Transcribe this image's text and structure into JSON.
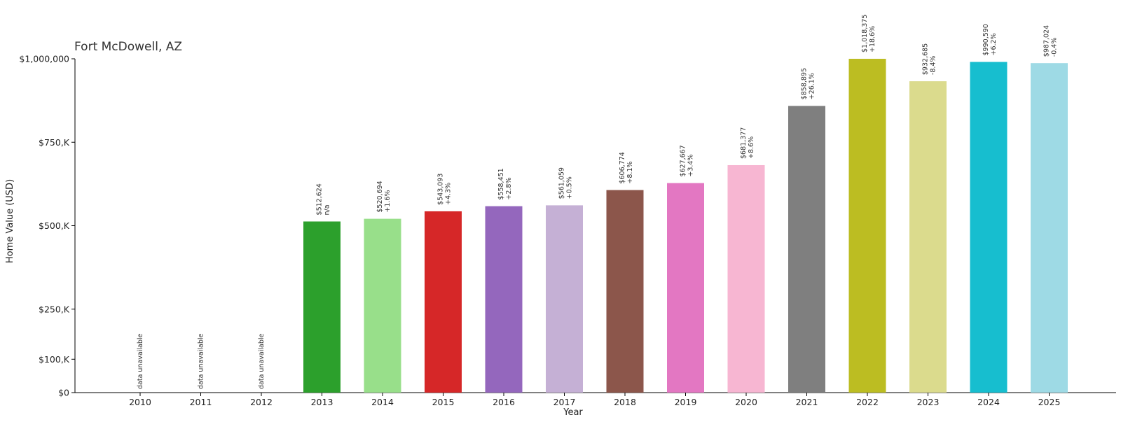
{
  "chart_data": {
    "type": "bar",
    "title": "Fort McDowell, AZ",
    "xlabel": "Year",
    "ylabel": "Home Value (USD)",
    "ylim": [
      0,
      1000000
    ],
    "yticks": [
      {
        "value": 0,
        "label": "$0"
      },
      {
        "value": 100000,
        "label": "$100,K"
      },
      {
        "value": 250000,
        "label": "$250,K"
      },
      {
        "value": 500000,
        "label": "$500,K"
      },
      {
        "value": 750000,
        "label": "$750,K"
      },
      {
        "value": 1000000,
        "label": "$1,000,000"
      }
    ],
    "grid": false,
    "unavailable_label": "data unavailable",
    "categories": [
      "2010",
      "2011",
      "2012",
      "2013",
      "2014",
      "2015",
      "2016",
      "2017",
      "2018",
      "2019",
      "2020",
      "2021",
      "2022",
      "2023",
      "2024",
      "2025"
    ],
    "values": [
      null,
      null,
      null,
      512624,
      520694,
      543093,
      558451,
      561059,
      606774,
      627667,
      681377,
      858895,
      1018375,
      932685,
      990590,
      987024
    ],
    "value_labels": [
      "",
      "",
      "",
      "$512,624",
      "$520,694",
      "$543,093",
      "$558,451",
      "$561,059",
      "$606,774",
      "$627,667",
      "$681,377",
      "$858,895",
      "$1,018,375",
      "$932,685",
      "$990,590",
      "$987,024"
    ],
    "change_labels": [
      "",
      "",
      "",
      "n/a",
      "+1.6%",
      "+4.3%",
      "+2.8%",
      "+0.5%",
      "+8.1%",
      "+3.4%",
      "+8.6%",
      "+26.1%",
      "+18.6%",
      "-8.4%",
      "+6.2%",
      "-0.4%"
    ],
    "colors": [
      "#1f77b4",
      "#aec7e8",
      "#ff7f0e",
      "#2ca02c",
      "#98df8a",
      "#d62728",
      "#9467bd",
      "#c5b0d5",
      "#8c564b",
      "#e377c2",
      "#f7b6d2",
      "#7f7f7f",
      "#bcbd22",
      "#dbdb8d",
      "#17becf",
      "#9edae5"
    ]
  }
}
